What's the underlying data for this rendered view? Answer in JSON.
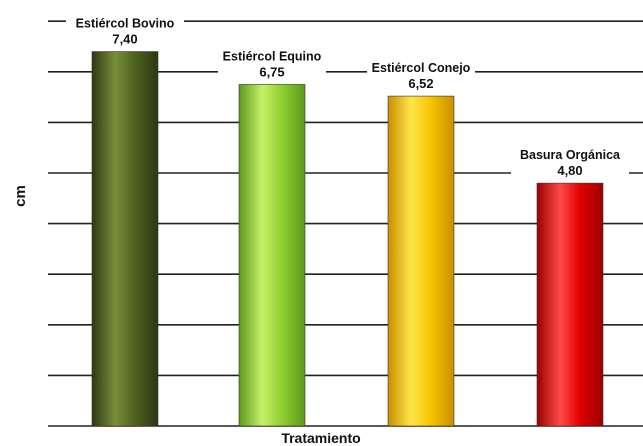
{
  "chart_data": {
    "type": "bar",
    "categories": [
      "Estiércol Bovino",
      "Estiércol Equino",
      "Estiércol Conejo",
      "Basura Orgánica"
    ],
    "values": [
      7.4,
      6.75,
      6.52,
      4.8
    ],
    "value_labels": [
      "7,40",
      "6,75",
      "6,52",
      "4,80"
    ],
    "xlabel": "Tratamiento",
    "ylabel": "cm",
    "ylim": [
      0,
      8
    ],
    "grid": true,
    "colors": [
      {
        "light": "#7a8f3a",
        "mid": "#4f6120",
        "dark": "#2c3812"
      },
      {
        "light": "#c6f06a",
        "mid": "#8fce2e",
        "dark": "#5c9a1c"
      },
      {
        "light": "#ffe54a",
        "mid": "#f5c400",
        "dark": "#c98f00"
      },
      {
        "light": "#ff4a4a",
        "mid": "#e00000",
        "dark": "#9a0000"
      }
    ]
  }
}
